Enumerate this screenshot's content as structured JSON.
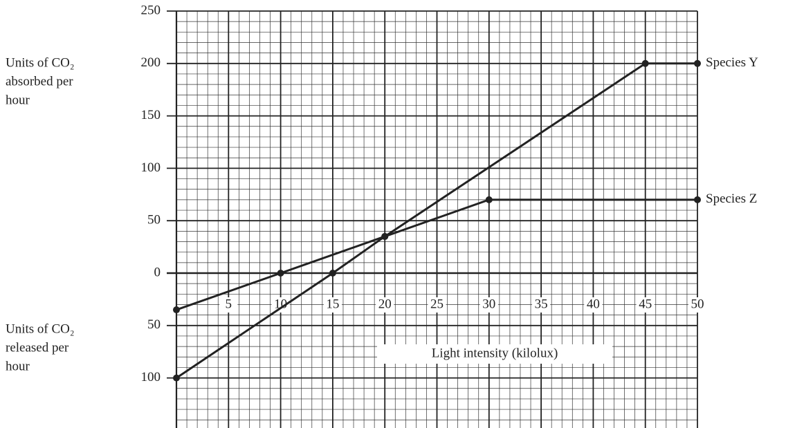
{
  "chart_data": {
    "type": "line",
    "xlabel": "Light intensity (kilolux)",
    "ylabel_upper": [
      "Units of CO₂",
      "absorbed per",
      "hour"
    ],
    "ylabel_lower": [
      "Units of CO₂",
      "released per",
      "hour"
    ],
    "xlim": [
      0,
      50
    ],
    "xticks": [
      5,
      10,
      15,
      20,
      25,
      30,
      35,
      40,
      45,
      50
    ],
    "ylim": [
      -150,
      250
    ],
    "yticks": [
      {
        "value": -100,
        "label": "100"
      },
      {
        "value": -50,
        "label": "50"
      },
      0,
      50,
      100,
      150,
      200,
      250
    ],
    "grid": true,
    "minor_grid": true,
    "series": [
      {
        "name": "Species Y",
        "color": "#222222",
        "x": [
          0,
          15,
          20,
          45,
          50
        ],
        "values": [
          -100,
          0,
          35,
          200,
          200
        ]
      },
      {
        "name": "Species Z",
        "color": "#222222",
        "x": [
          0,
          10,
          20,
          30,
          50
        ],
        "values": [
          -35,
          0,
          35,
          70,
          70
        ]
      }
    ]
  }
}
